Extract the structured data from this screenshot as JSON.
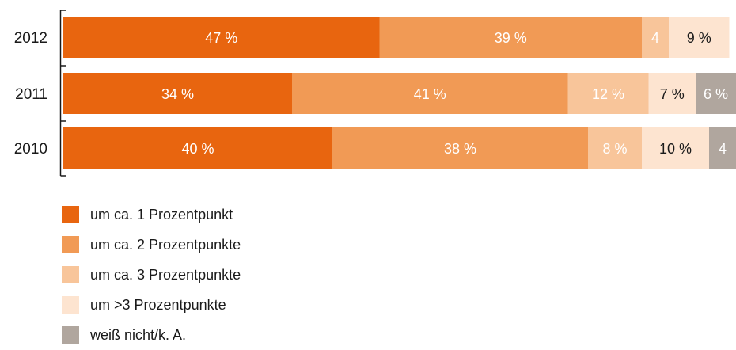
{
  "chart_data": {
    "type": "bar",
    "orientation": "horizontal",
    "stacked": true,
    "categories": [
      "2012",
      "2011",
      "2010"
    ],
    "series": [
      {
        "name": "um ca. 1 Prozentpunkt",
        "color": "#e8650f",
        "text_color": "#ffffff",
        "values": [
          47,
          34,
          40
        ],
        "labels": [
          "47 %",
          "34 %",
          "40 %"
        ]
      },
      {
        "name": "um ca. 2 Prozentpunkte",
        "color": "#f19a55",
        "text_color": "#ffffff",
        "values": [
          39,
          41,
          38
        ],
        "labels": [
          "39 %",
          "41 %",
          "38 %"
        ]
      },
      {
        "name": "um ca. 3 Prozentpunkte",
        "color": "#f8c59a",
        "text_color": "#ffffff",
        "values": [
          4,
          12,
          8
        ],
        "labels": [
          "4",
          "12 %",
          "8 %"
        ]
      },
      {
        "name": "um >3 Prozentpunkte",
        "color": "#fde4d0",
        "text_color": "#1a1a1a",
        "values": [
          9,
          7,
          10
        ],
        "labels": [
          "9 %",
          "7 %",
          "10 %"
        ]
      },
      {
        "name": "weiß nicht/k. A.",
        "color": "#b0a69e",
        "text_color": "#ffffff",
        "values": [
          0,
          6,
          4
        ],
        "labels": [
          "",
          "6 %",
          "4"
        ]
      }
    ],
    "xlim": [
      0,
      100
    ],
    "grid": false,
    "legend_position": "bottom-left"
  }
}
